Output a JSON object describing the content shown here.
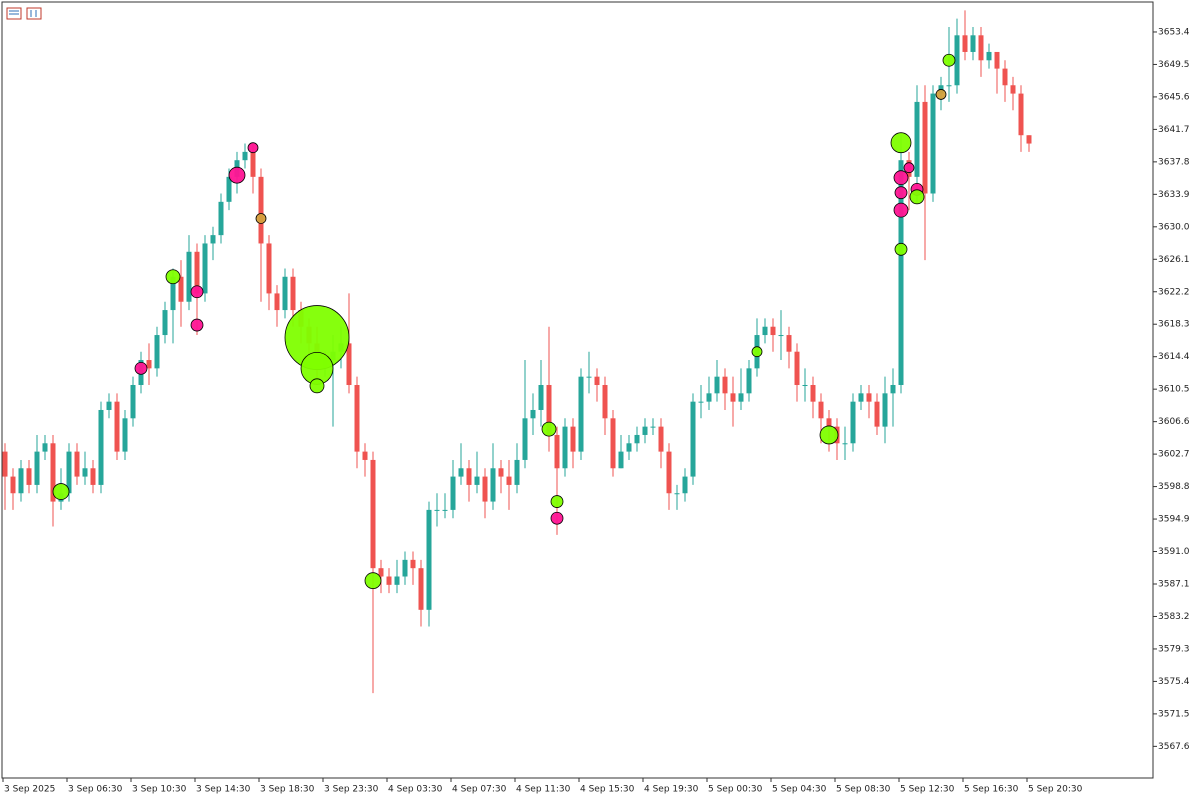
{
  "chart_data": {
    "type": "candlestick",
    "categories": [
      "3 Sep 2025",
      null,
      null,
      null,
      null,
      null,
      null,
      null,
      "3 Sep 06:30",
      null,
      null,
      null,
      null,
      null,
      null,
      null,
      "3 Sep 10:30",
      null,
      null,
      null,
      null,
      null,
      null,
      null,
      "3 Sep 14:30",
      null,
      null,
      null,
      null,
      null,
      null,
      null,
      "3 Sep 18:30",
      null,
      null,
      null,
      null,
      null,
      null,
      null,
      "3 Sep 23:30",
      null,
      null,
      null,
      null,
      null,
      null,
      null,
      "4 Sep 03:30",
      null,
      null,
      null,
      null,
      null,
      null,
      null,
      "4 Sep 07:30",
      null,
      null,
      null,
      null,
      null,
      null,
      null,
      "4 Sep 11:30",
      null,
      null,
      null,
      null,
      null,
      null,
      null,
      "4 Sep 15:30",
      null,
      null,
      null,
      null,
      null,
      null,
      null,
      "4 Sep 19:30",
      null,
      null,
      null,
      null,
      null,
      null,
      null,
      "5 Sep 00:30",
      null,
      null,
      null,
      null,
      null,
      null,
      null,
      "5 Sep 04:30",
      null,
      null,
      null,
      null,
      null,
      null,
      null,
      "5 Sep 08:30",
      null,
      null,
      null,
      null,
      null,
      null,
      null,
      "5 Sep 12:30",
      null,
      null,
      null,
      null,
      null,
      null,
      null,
      "5 Sep 16:30",
      null,
      null,
      null,
      null,
      null,
      null,
      null,
      "5 Sep 20:30"
    ],
    "open": [
      3603,
      3600,
      3598,
      3601,
      3599,
      3603,
      3604,
      3597,
      3598,
      3603,
      3600,
      3601,
      3599,
      3608,
      3609,
      3603,
      3607,
      3611,
      3614,
      3613,
      3617,
      3620,
      3624,
      3621,
      3627,
      3622,
      3628,
      3629,
      3633,
      3636,
      3638,
      3639,
      3636,
      3628,
      3622,
      3620,
      3624,
      3620,
      3618,
      3616,
      3613,
      3614,
      3615,
      3616,
      3611,
      3603,
      3602,
      3589,
      3588,
      3587,
      3588,
      3590,
      3589,
      3584,
      3596,
      3596,
      3596,
      3600,
      3601,
      3599,
      3600,
      3597,
      3601,
      3600,
      3599,
      3602,
      3607,
      3608,
      3611,
      3605,
      3601,
      3606,
      3603,
      3612,
      3612,
      3611,
      3607,
      3601,
      3603,
      3604,
      3605,
      3606,
      3606,
      3603,
      3598,
      3598,
      3600,
      3609,
      3609,
      3610,
      3612,
      3610,
      3609,
      3610,
      3613,
      3617,
      3618,
      3617,
      3617,
      3615,
      3611,
      3611,
      3609,
      3607,
      3606,
      3604,
      3604,
      3609,
      3610,
      3609,
      3606,
      3610,
      3611,
      3638,
      3636,
      3645,
      3634,
      3646,
      3647,
      3647,
      3653,
      3651,
      3653,
      3650,
      3651,
      3649,
      3647,
      3646,
      3641
    ],
    "high": [
      3604,
      3601,
      3602,
      3602,
      3605,
      3605,
      3605,
      3601,
      3604,
      3604,
      3603,
      3602,
      3609,
      3610,
      3610,
      3608,
      3612,
      3615,
      3616,
      3618,
      3621,
      3625,
      3626,
      3629,
      3628,
      3629,
      3630,
      3634,
      3637,
      3639,
      3640,
      3640,
      3637,
      3629,
      3623,
      3625,
      3625,
      3621,
      3619,
      3618,
      3615,
      3617,
      3618,
      3622,
      3612,
      3604,
      3603,
      3590,
      3589,
      3590,
      3591,
      3591,
      3590,
      3597,
      3598,
      3598,
      3602,
      3604,
      3602,
      3603,
      3601,
      3604,
      3602,
      3602,
      3604,
      3614,
      3610,
      3614,
      3618,
      3606,
      3607,
      3607,
      3613,
      3615,
      3613,
      3612,
      3608,
      3605,
      3605,
      3606,
      3607,
      3607,
      3607,
      3604,
      3599,
      3601,
      3610,
      3611,
      3612,
      3614,
      3613,
      3612,
      3613,
      3614,
      3619,
      3619,
      3619,
      3620,
      3618,
      3616,
      3613,
      3612,
      3610,
      3608,
      3607,
      3606,
      3610,
      3611,
      3611,
      3610,
      3612,
      3613,
      3641,
      3639,
      3647,
      3647,
      3647,
      3648,
      3654,
      3655,
      3656,
      3654,
      3654,
      3652,
      3651,
      3650,
      3648,
      3647,
      3641
    ],
    "low": [
      3596,
      3596,
      3597,
      3598,
      3598,
      3602,
      3594,
      3596,
      3597,
      3599,
      3599,
      3598,
      3598,
      3607,
      3602,
      3602,
      3606,
      3610,
      3611,
      3612,
      3616,
      3616,
      3618,
      3620,
      3617,
      3621,
      3626,
      3628,
      3632,
      3634,
      3637,
      3634,
      3621,
      3620,
      3618,
      3619,
      3618,
      3616,
      3614,
      3611,
      3612,
      3606,
      3613,
      3610,
      3601,
      3600,
      3574,
      3586,
      3586,
      3586,
      3587,
      3587,
      3582,
      3582,
      3594,
      3595,
      3595,
      3599,
      3597,
      3598,
      3595,
      3596,
      3598,
      3596,
      3598,
      3601,
      3605,
      3606,
      3603,
      3593,
      3600,
      3601,
      3602,
      3610,
      3609,
      3605,
      3600,
      3601,
      3602,
      3603,
      3604,
      3605,
      3601,
      3596,
      3596,
      3597,
      3599,
      3607,
      3608,
      3609,
      3608,
      3606,
      3608,
      3609,
      3612,
      3616,
      3615,
      3614,
      3613,
      3609,
      3609,
      3607,
      3604,
      3603,
      3602,
      3602,
      3603,
      3608,
      3607,
      3605,
      3604,
      3606,
      3610,
      3632,
      3633,
      3626,
      3633,
      3644,
      3645,
      3646,
      3650,
      3650,
      3648,
      3649,
      3646,
      3645,
      3644,
      3639,
      3639
    ],
    "close": [
      3600,
      3598,
      3601,
      3599,
      3603,
      3604,
      3597,
      3598,
      3603,
      3600,
      3601,
      3599,
      3608,
      3609,
      3603,
      3607,
      3611,
      3614,
      3613,
      3617,
      3620,
      3624,
      3621,
      3627,
      3622,
      3628,
      3629,
      3633,
      3636,
      3638,
      3639,
      3636,
      3628,
      3622,
      3620,
      3624,
      3620,
      3618,
      3616,
      3613,
      3614,
      3615,
      3616,
      3611,
      3603,
      3602,
      3589,
      3588,
      3587,
      3588,
      3590,
      3589,
      3584,
      3596,
      3596,
      3596,
      3600,
      3601,
      3599,
      3600,
      3597,
      3601,
      3600,
      3599,
      3602,
      3607,
      3608,
      3611,
      3605,
      3601,
      3606,
      3603,
      3612,
      3612,
      3611,
      3607,
      3601,
      3603,
      3604,
      3605,
      3606,
      3606,
      3603,
      3598,
      3598,
      3600,
      3609,
      3609,
      3610,
      3612,
      3610,
      3609,
      3610,
      3613,
      3617,
      3618,
      3617,
      3617,
      3615,
      3611,
      3611,
      3609,
      3607,
      3606,
      3604,
      3604,
      3609,
      3610,
      3609,
      3606,
      3610,
      3611,
      3638,
      3636,
      3645,
      3634,
      3646,
      3647,
      3647,
      3653,
      3651,
      3653,
      3650,
      3651,
      3649,
      3647,
      3646,
      3641,
      3640
    ],
    "up_color": "#26a69a",
    "down_color": "#ef5350",
    "markers": {
      "x": [
        7,
        17,
        21,
        24,
        24,
        29,
        31,
        32,
        39,
        39,
        39,
        46,
        68,
        69,
        69,
        94,
        103,
        112,
        112,
        112,
        112,
        112,
        113,
        114,
        114,
        117,
        118
      ],
      "y": [
        3598.2,
        3613,
        3624,
        3622.2,
        3618.2,
        3636.2,
        3639.5,
        3631,
        3616.7,
        3613,
        3610.9,
        3587.5,
        3605.7,
        3597,
        3595,
        3615,
        3605,
        3640.1,
        3635.9,
        3634.1,
        3632,
        3627.3,
        3637.1,
        3634.5,
        3633.6,
        3645.9,
        3650
      ],
      "size": [
        8,
        6,
        7,
        6,
        6,
        8,
        5,
        5,
        32,
        16,
        7,
        8,
        7,
        6,
        6,
        5,
        9,
        10,
        7,
        6,
        7,
        6,
        5,
        6,
        7,
        5,
        6
      ],
      "color": [
        "#7fff00",
        "#ff1493",
        "#7fff00",
        "#ff1493",
        "#ff1493",
        "#ff1493",
        "#ff1493",
        "#d4a03c",
        "#7fff00",
        "#7fff00",
        "#7fff00",
        "#7fff00",
        "#7fff00",
        "#7fff00",
        "#ff1493",
        "#7fff00",
        "#7fff00",
        "#7fff00",
        "#ff1493",
        "#ff1493",
        "#ff1493",
        "#7fff00",
        "#ff1493",
        "#ff1493",
        "#7fff00",
        "#d4a03c",
        "#7fff00"
      ]
    },
    "ylim": [
      3563.8,
      3657.0
    ],
    "yticks": [
      3653.4,
      3649.5,
      3645.6,
      3641.7,
      3637.8,
      3633.9,
      {
        "value": 3630,
        "label": "3630.0"
      },
      3626.1,
      3622.2,
      3618.3,
      3614.4,
      3610.5,
      3606.6,
      3602.7,
      3598.8,
      3594.9,
      {
        "value": 3591,
        "label": "3591.0"
      },
      3587.1,
      3583.2,
      3579.3,
      3575.4,
      3571.5,
      3567.6
    ],
    "grid": false
  }
}
